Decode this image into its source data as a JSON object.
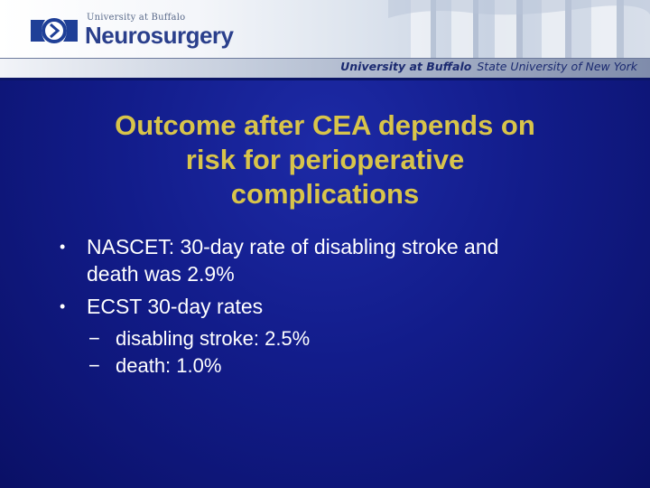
{
  "header": {
    "logo_small": "University at Buffalo",
    "logo_big": "Neurosurgery",
    "strip_primary": "University at Buffalo",
    "strip_secondary": "State University of New York"
  },
  "title": {
    "line1": "Outcome after CEA depends on",
    "line2": "risk for perioperative",
    "line3": "complications"
  },
  "bullets": [
    {
      "line1": "NASCET: 30-day rate of disabling stroke and",
      "line2": "death was 2.9%"
    },
    {
      "text": "ECST 30-day rates",
      "sub": [
        "disabling stroke: 2.5%",
        "death: 1.0%"
      ]
    }
  ],
  "colors": {
    "background": "#121c8a",
    "title": "#d8c44a",
    "text": "#ffffff",
    "brand": "#2a3f8c"
  }
}
